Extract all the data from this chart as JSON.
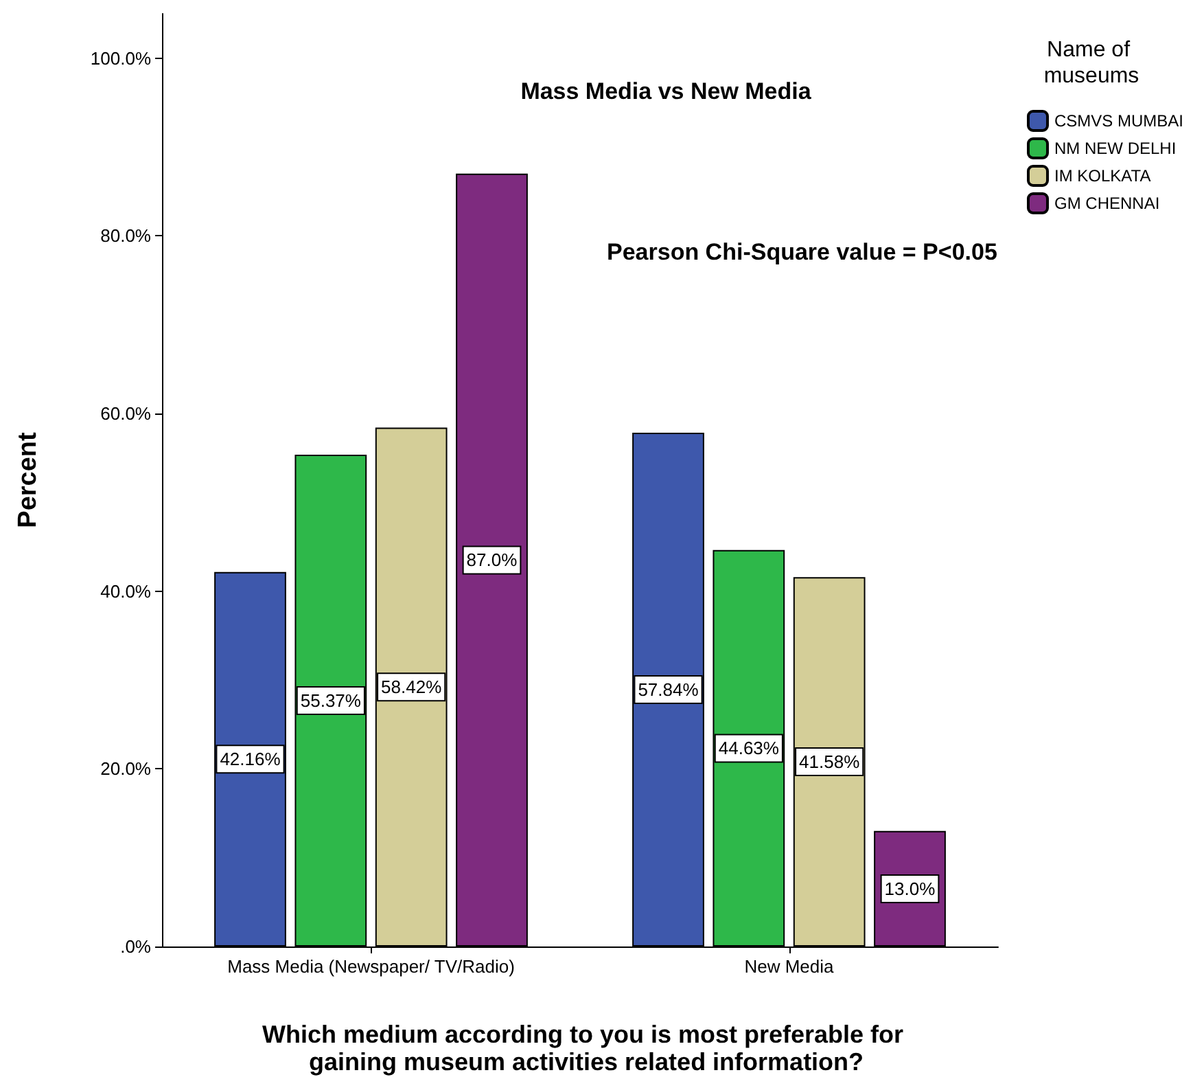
{
  "chart_data": {
    "type": "bar",
    "title": "Mass Media vs New Media",
    "xlabel": "Which medium according to you is most preferable for gaining museum activities related information?",
    "ylabel": "Percent",
    "legend_title": "Name of museums",
    "annotations": [
      "Pearson Chi-Square value = P<0.05"
    ],
    "categories": [
      "Mass Media (Newspaper/ TV/Radio)",
      "New Media"
    ],
    "series": [
      {
        "name": "CSMVS MUMBAI",
        "color": "#3e58ac",
        "values": [
          42.16,
          57.84
        ],
        "value_labels": [
          "42.16%",
          "57.84%"
        ]
      },
      {
        "name": "NM NEW DELHI",
        "color": "#2eb84a",
        "values": [
          55.37,
          44.63
        ],
        "value_labels": [
          "55.37%",
          "44.63%"
        ]
      },
      {
        "name": "IM KOLKATA",
        "color": "#d4ce98",
        "values": [
          58.42,
          41.58
        ],
        "value_labels": [
          "58.42%",
          "41.58%"
        ]
      },
      {
        "name": "GM CHENNAI",
        "color": "#7e2b7f",
        "values": [
          87.0,
          13.0
        ],
        "value_labels": [
          "87.0%",
          "13.0%"
        ]
      }
    ],
    "ylim": [
      0,
      105
    ],
    "yticks": [
      {
        "value": 0,
        "label": ".0%"
      },
      {
        "value": 20,
        "label": "20.0%"
      },
      {
        "value": 40,
        "label": "40.0%"
      },
      {
        "value": 60,
        "label": "60.0%"
      },
      {
        "value": 80,
        "label": "80.0%"
      },
      {
        "value": 100,
        "label": "100.0%"
      }
    ],
    "grid": false,
    "legend": "top right"
  }
}
